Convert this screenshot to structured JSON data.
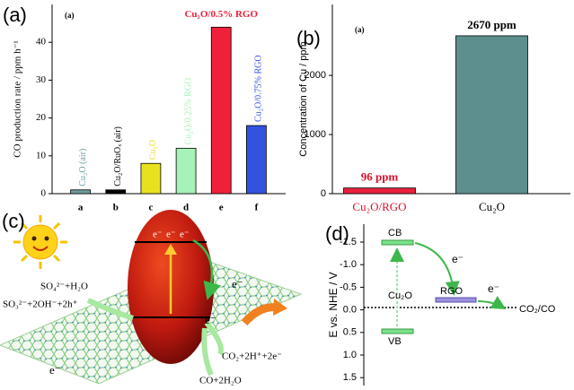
{
  "chart_data": [
    {
      "type": "bar",
      "panel_label": "(a)",
      "inset_label": "(a)",
      "y_label": "CO production rate / ppm h⁻¹",
      "categories": [
        "a",
        "b",
        "c",
        "d",
        "e",
        "f"
      ],
      "values": [
        1,
        1,
        8,
        12,
        44,
        18
      ],
      "bar_labels": [
        "Cu₂O (air)",
        "Cu₂O/RuOₓ (air)",
        "Cu₂O",
        "Cu₂O/0.25% RGO",
        "Cu₂O/0.5% RGO",
        "Cu₂O/0.75% RGO"
      ],
      "colors": [
        "#6f9c9c",
        "#000000",
        "#e8e21e",
        "#a6f2b8",
        "#f0203a",
        "#3352e0"
      ],
      "ylim": [
        0,
        50
      ],
      "yticks": [
        0,
        10,
        20,
        30,
        40
      ]
    },
    {
      "type": "bar",
      "panel_label": "(b)",
      "inset_label": "(a)",
      "y_label": "Concentration of Cu / ppm",
      "categories": [
        "Cu₂O/RGO",
        "Cu₂O"
      ],
      "values": [
        96,
        2670
      ],
      "value_labels": [
        "96 ppm",
        "2670 ppm"
      ],
      "colors": [
        "#e8203c",
        "#5e8f8f"
      ],
      "label_colors": [
        "#d8102c",
        "#000000"
      ],
      "ylim": [
        0,
        3200
      ],
      "yticks": [
        0,
        1000,
        2000
      ]
    }
  ],
  "diagram_c": {
    "panel_label": "(c)",
    "sulfate": "SO₄²⁻+H₂O",
    "sulfite": "SO₃²⁻+2OH⁻+2h⁺",
    "electrons_top": [
      "e⁻",
      "e⁻",
      "e⁻"
    ],
    "electron_right": "e⁻",
    "electron_sheet": "e⁻",
    "electron_left": "e⁻",
    "reactant": "CO₂+2H⁺+2e⁻",
    "product": "CO+2H₂O"
  },
  "diagram_d": {
    "panel_label": "(d)",
    "axis_label": "E vs. NHE / V",
    "axis_ticks": [
      "-1.5",
      "-1.0",
      "-0.5",
      "0.0",
      "0.5",
      "1.0",
      "1.5"
    ],
    "cb": "CB",
    "vb": "VB",
    "semiconductor": "Cu₂O",
    "rgo": "RGO",
    "electron_1": "e⁻",
    "electron_2": "e⁻",
    "redox": "CO₂/CO"
  }
}
